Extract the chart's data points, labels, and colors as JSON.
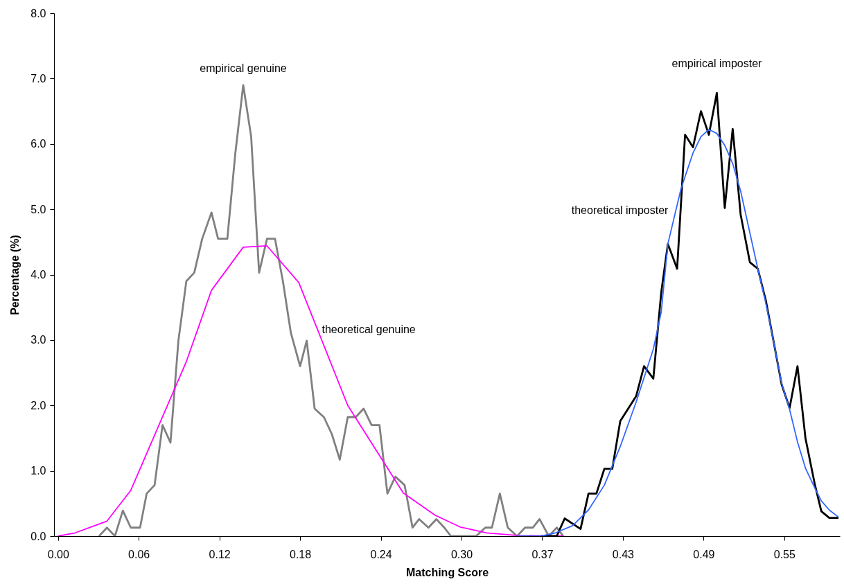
{
  "chart_data": {
    "type": "line",
    "xlabel": "Matching Score",
    "ylabel": "Percentage (%)",
    "xlim": [
      -0.003,
      0.591
    ],
    "xticks": [
      {
        "value": 0,
        "label": "0.00"
      },
      {
        "value": 0.061,
        "label": "0.06"
      },
      {
        "value": 0.122,
        "label": "0.12"
      },
      {
        "value": 0.183,
        "label": "0.18"
      },
      {
        "value": 0.244,
        "label": "0.24"
      },
      {
        "value": 0.305,
        "label": "0.30"
      },
      {
        "value": 0.366,
        "label": "0.37"
      },
      {
        "value": 0.427,
        "label": "0.43"
      },
      {
        "value": 0.488,
        "label": "0.49"
      },
      {
        "value": 0.549,
        "label": "0.55"
      }
    ],
    "ylim": [
      0,
      8
    ],
    "yticks": [
      {
        "value": 0,
        "label": "0.0"
      },
      {
        "value": 1,
        "label": "1.0"
      },
      {
        "value": 2,
        "label": "2.0"
      },
      {
        "value": 3,
        "label": "3.0"
      },
      {
        "value": 4,
        "label": "4.0"
      },
      {
        "value": 5,
        "label": "5.0"
      },
      {
        "value": 6,
        "label": "6.0"
      },
      {
        "value": 7,
        "label": "7.0"
      },
      {
        "value": 8,
        "label": "8.0"
      }
    ],
    "grid": false,
    "series": [
      {
        "name": "empirical genuine",
        "color": "#808080",
        "x": [
          0.031,
          0.037,
          0.043,
          0.049,
          0.055,
          0.062,
          0.067,
          0.073,
          0.079,
          0.085,
          0.091,
          0.097,
          0.103,
          0.109,
          0.116,
          0.121,
          0.128,
          0.134,
          0.14,
          0.146,
          0.152,
          0.158,
          0.164,
          0.17,
          0.176,
          0.183,
          0.188,
          0.194,
          0.201,
          0.207,
          0.213,
          0.219,
          0.225,
          0.231,
          0.237,
          0.243,
          0.249,
          0.255,
          0.262,
          0.268,
          0.273,
          0.28,
          0.286,
          0.292,
          0.297,
          0.316,
          0.323,
          0.328,
          0.334,
          0.34,
          0.347,
          0.353,
          0.359,
          0.364,
          0.371,
          0.377,
          0.382
        ],
        "values": [
          0,
          0.13,
          0,
          0.39,
          0.13,
          0.13,
          0.65,
          0.78,
          1.7,
          1.43,
          2.99,
          3.9,
          4.03,
          4.55,
          4.95,
          4.55,
          4.55,
          5.85,
          6.9,
          6.11,
          4.03,
          4.55,
          4.55,
          3.9,
          3.11,
          2.6,
          2.99,
          1.95,
          1.82,
          1.56,
          1.17,
          1.82,
          1.82,
          1.95,
          1.7,
          1.7,
          0.65,
          0.91,
          0.78,
          0.13,
          0.26,
          0.13,
          0.26,
          0.13,
          0,
          0,
          0.13,
          0.13,
          0.65,
          0.13,
          0,
          0.13,
          0.13,
          0.26,
          0,
          0.13,
          0
        ]
      },
      {
        "name": "theoretical genuine",
        "color": "#ff00ff",
        "x": [
          0,
          0.013,
          0.037,
          0.055,
          0.097,
          0.116,
          0.14,
          0.158,
          0.182,
          0.219,
          0.261,
          0.285,
          0.304,
          0.324,
          0.348,
          0.382
        ],
        "values": [
          0,
          0.05,
          0.23,
          0.7,
          2.67,
          3.76,
          4.42,
          4.44,
          3.88,
          2.0,
          0.66,
          0.32,
          0.14,
          0.05,
          0.01,
          0
        ]
      },
      {
        "name": "empirical imposter",
        "color": "#000000",
        "x": [
          0.365,
          0.377,
          0.383,
          0.395,
          0.401,
          0.407,
          0.413,
          0.419,
          0.425,
          0.437,
          0.443,
          0.45,
          0.456,
          0.461,
          0.468,
          0.474,
          0.48,
          0.486,
          0.492,
          0.498,
          0.504,
          0.51,
          0.516,
          0.523,
          0.529,
          0.535,
          0.541,
          0.547,
          0.553,
          0.559,
          0.565,
          0.572,
          0.577,
          0.583,
          0.59
        ],
        "values": [
          0,
          0,
          0.27,
          0.11,
          0.65,
          0.65,
          1.03,
          1.03,
          1.76,
          2.14,
          2.6,
          2.41,
          3.73,
          4.47,
          4.09,
          6.14,
          5.95,
          6.5,
          6.14,
          6.78,
          5.02,
          6.23,
          4.92,
          4.19,
          4.09,
          3.61,
          2.97,
          2.32,
          1.96,
          2.6,
          1.5,
          0.8,
          0.38,
          0.28,
          0.28
        ]
      },
      {
        "name": "theoretical imposter",
        "color": "#3366ff",
        "x": [
          0.347,
          0.365,
          0.376,
          0.389,
          0.401,
          0.413,
          0.425,
          0.437,
          0.45,
          0.456,
          0.461,
          0.471,
          0.48,
          0.486,
          0.492,
          0.498,
          0.504,
          0.51,
          0.516,
          0.529,
          0.535,
          0.541,
          0.547,
          0.553,
          0.559,
          0.565,
          0.572,
          0.577,
          0.583,
          0.59
        ],
        "values": [
          0,
          0,
          0.05,
          0.16,
          0.4,
          0.78,
          1.37,
          2.05,
          2.86,
          3.43,
          4.47,
          5.32,
          5.86,
          6.11,
          6.22,
          6.16,
          5.98,
          5.7,
          5.28,
          4.09,
          3.57,
          2.97,
          2.34,
          1.94,
          1.44,
          1.04,
          0.74,
          0.54,
          0.4,
          0.29
        ]
      }
    ]
  }
}
